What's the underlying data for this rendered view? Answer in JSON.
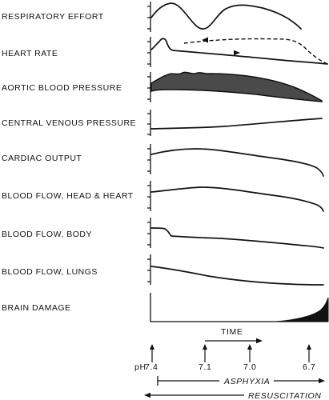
{
  "panels": [
    {
      "label": "RESPIRATORY EFFORT"
    },
    {
      "label": "HEART RATE"
    },
    {
      "label": "AORTIC BLOOD PRESSURE"
    },
    {
      "label": "CENTRAL VENOUS PRESSURE"
    },
    {
      "label": "CARDIAC OUTPUT"
    },
    {
      "label": "BLOOD FLOW, HEAD & HEART"
    },
    {
      "label": "BLOOD FLOW, BODY"
    },
    {
      "label": "BLOOD FLOW, LUNGS"
    },
    {
      "label": "BRAIN DAMAGE"
    }
  ],
  "time_axis": {
    "label": "TIME"
  },
  "ph": {
    "label": "pH",
    "markers": [
      {
        "value": "7.4"
      },
      {
        "value": "7.1"
      },
      {
        "value": "7.0"
      },
      {
        "value": "6.7"
      }
    ]
  },
  "phases": {
    "asphyxia": "ASPHYXIA",
    "resuscitation": "RESUSCITATION"
  }
}
